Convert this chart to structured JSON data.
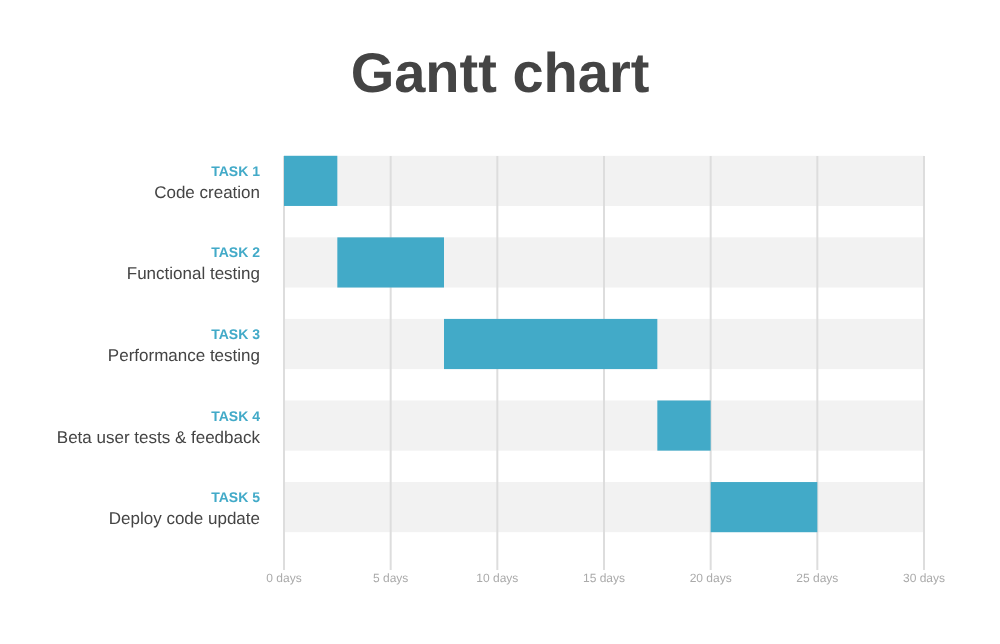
{
  "chart_data": {
    "type": "bar",
    "orientation": "horizontal",
    "title": "Gantt chart",
    "categories": [
      "TASK 1\nCode creation",
      "TASK 2\nFunctional testing",
      "TASK 3\nPerformance testing",
      "TASK 4\nBeta user tests & feedback",
      "TASK 5\nDeploy code update"
    ],
    "base": [
      0,
      2.5,
      7.5,
      17.5,
      20
    ],
    "values": [
      2.5,
      5,
      10,
      2.5,
      5
    ],
    "color": "#42aac8",
    "xlim": [
      0,
      30
    ],
    "xticks": [
      {
        "value": 0,
        "label": "0 days"
      },
      {
        "value": 5,
        "label": "5 days"
      },
      {
        "value": 10,
        "label": "10 days"
      },
      {
        "value": 15,
        "label": "15 days"
      },
      {
        "value": 20,
        "label": "20 days"
      },
      {
        "value": 25,
        "label": "25 days"
      },
      {
        "value": 30,
        "label": "30 days"
      }
    ],
    "grid": "x"
  }
}
